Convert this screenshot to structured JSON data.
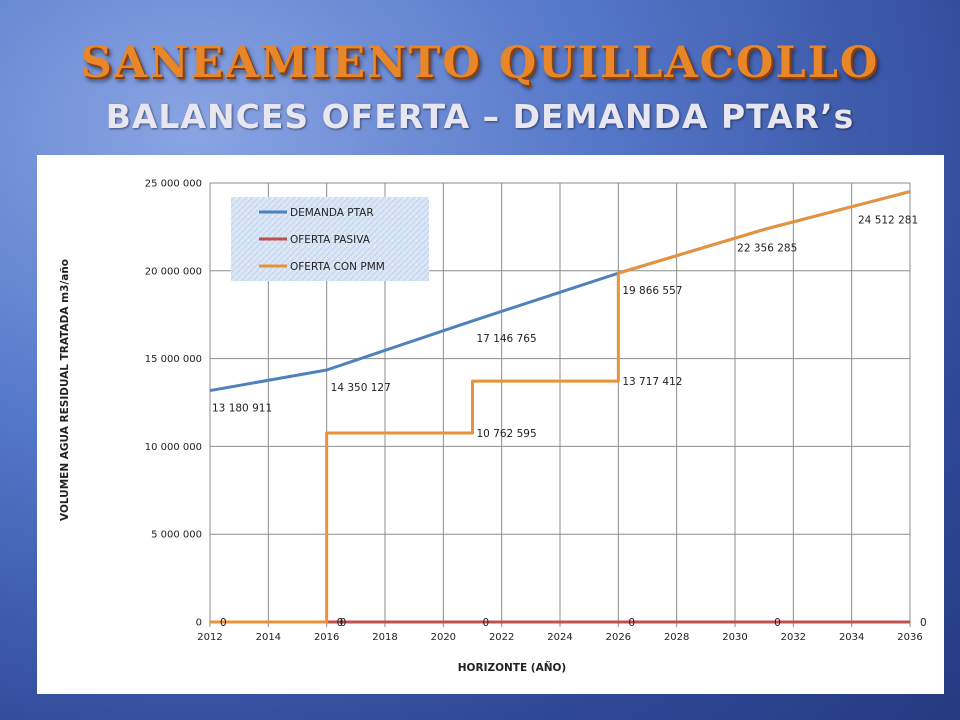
{
  "slide": {
    "title": "SANEAMIENTO QUILLACOLLO",
    "subtitle": "BALANCES OFERTA – DEMANDA PTAR’s"
  },
  "colors": {
    "demanda": "#4f81bd",
    "oferta_pasiva": "#c0504d",
    "oferta_pmm": "#e8923a",
    "title": "#e8862a"
  },
  "chart_data": {
    "type": "line",
    "title": "",
    "xlabel": "HORIZONTE (AÑO)",
    "ylabel": "VOLUMEN AGUA RESIDUAL TRATADA m3/año",
    "xlim": [
      2012,
      2036
    ],
    "ylim": [
      0,
      25000000
    ],
    "x_ticks": [
      "2012",
      "2014",
      "2016",
      "2018",
      "2020",
      "2022",
      "2024",
      "2026",
      "2028",
      "2030",
      "2032",
      "2034",
      "2036"
    ],
    "y_ticks": [
      "0",
      "5 000 000",
      "10 000 000",
      "15 000 000",
      "20 000 000",
      "25 000 000"
    ],
    "grid": true,
    "legend_position": "top-left",
    "series": [
      {
        "name": "DEMANDA PTAR",
        "step": false,
        "x": [
          2012,
          2016,
          2021,
          2026,
          2031,
          2036
        ],
        "y": [
          13180911,
          14350127,
          17146765,
          19866557,
          22356285,
          24512281
        ]
      },
      {
        "name": "OFERTA PASIVA",
        "step": false,
        "x": [
          2012,
          2016,
          2021,
          2026,
          2031,
          2036
        ],
        "y": [
          0,
          0,
          0,
          0,
          0,
          0
        ]
      },
      {
        "name": "OFERTA CON PMM",
        "step": true,
        "x": [
          2012,
          2016,
          2021,
          2026,
          2031,
          2036
        ],
        "y": [
          0,
          10762595,
          13717412,
          19866557,
          22356285,
          24512281
        ]
      }
    ],
    "data_labels": [
      {
        "text": "13 180 911",
        "x": 2012,
        "y": 13180911,
        "dx": 2,
        "dy": 21
      },
      {
        "text": "14 350 127",
        "x": 2016,
        "y": 14350127,
        "dx": 4,
        "dy": 21
      },
      {
        "text": "17 146 765",
        "x": 2021,
        "y": 17146765,
        "dx": 4,
        "dy": 21
      },
      {
        "text": "19 866 557",
        "x": 2026,
        "y": 19866557,
        "dx": 4,
        "dy": 21
      },
      {
        "text": "22 356 285",
        "x": 2031,
        "y": 22356285,
        "dx": -27,
        "dy": 22
      },
      {
        "text": "24 512 281",
        "x": 2036,
        "y": 24512281,
        "dx": -52,
        "dy": 32
      },
      {
        "text": "10 762 595",
        "x": 2021,
        "y": 10762595,
        "dx": 4,
        "dy": 4
      },
      {
        "text": "13 717 412",
        "x": 2026,
        "y": 13717412,
        "dx": 4,
        "dy": 4
      },
      {
        "text": "0",
        "x": 2012,
        "y": 0,
        "dx": 10,
        "dy": 4
      },
      {
        "text": "0",
        "x": 2016,
        "y": 0,
        "dx": 10,
        "dy": 4
      },
      {
        "text": "0",
        "x": 2016,
        "y": 0,
        "dx": 13,
        "dy": 4
      },
      {
        "text": "0",
        "x": 2021,
        "y": 0,
        "dx": 10,
        "dy": 4
      },
      {
        "text": "0",
        "x": 2026,
        "y": 0,
        "dx": 10,
        "dy": 4
      },
      {
        "text": "0",
        "x": 2031,
        "y": 0,
        "dx": 10,
        "dy": 4
      },
      {
        "text": "0",
        "x": 2036,
        "y": 0,
        "dx": 10,
        "dy": 4
      }
    ]
  }
}
